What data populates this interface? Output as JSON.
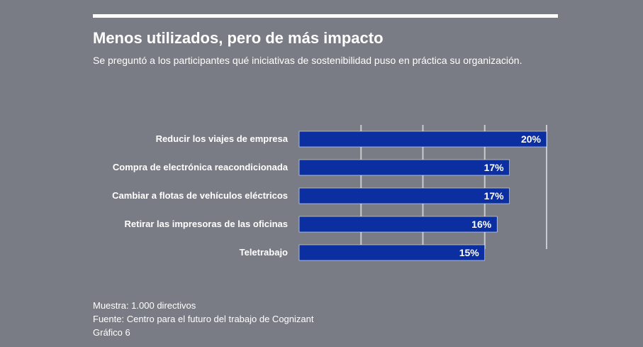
{
  "header": {
    "title": "Menos utilizados, pero de más impacto",
    "subtitle": "Se preguntó a los participantes qué iniciativas de sostenibilidad puso en práctica su organización."
  },
  "chart_data": {
    "type": "bar",
    "orientation": "horizontal",
    "categories": [
      "Reducir los viajes de empresa",
      "Compra de electrónica reacondicionada",
      "Cambiar a flotas de vehículos eléctricos",
      "Retirar las impresoras de las oficinas",
      "Teletrabajo"
    ],
    "values": [
      20,
      17,
      17,
      16,
      15
    ],
    "value_labels": [
      "20%",
      "17%",
      "17%",
      "16%",
      "15%"
    ],
    "xlim": [
      0,
      20
    ],
    "grid": true,
    "bar_color": "#0b2ea0",
    "grid_color": "#c8cacf"
  },
  "footer": {
    "sample": "Muestra: 1.000 directivos",
    "source": "Fuente: Centro para el futuro del trabajo de Cognizant",
    "figure": "Gráfico 6"
  }
}
